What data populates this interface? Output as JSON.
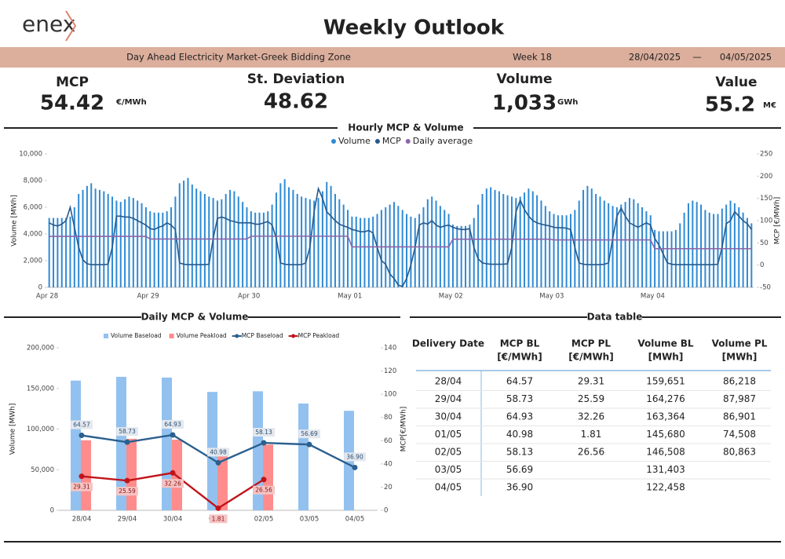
{
  "header": {
    "logo": "enex",
    "title": "Weekly Outlook",
    "market": "Day Ahead Electricity Market-Greek Bidding Zone",
    "week": "Week 18",
    "date_from": "28/04/2025",
    "separator": "—",
    "date_to": "04/05/2025"
  },
  "kpis": [
    {
      "label": "MCP",
      "value": "54.42",
      "unit": "€/MWh"
    },
    {
      "label": "St. Deviation",
      "value": "48.62"
    },
    {
      "label": "Volume",
      "value": "1,033",
      "unit": "GWh"
    },
    {
      "label": "Value",
      "value": "55.2",
      "unit": "M€"
    }
  ],
  "chart_data": [
    {
      "type": "bar_line",
      "title": "Hourly MCP & Volume",
      "ylabel": "Volume [MWh]",
      "y2label": "MCP [€/MWh]",
      "legend": "top",
      "categories": [
        "Apr 28",
        null,
        null,
        null,
        null,
        null,
        null,
        null,
        null,
        null,
        null,
        null,
        null,
        null,
        null,
        null,
        null,
        null,
        null,
        null,
        null,
        null,
        null,
        null,
        "Apr 29",
        null,
        null,
        null,
        null,
        null,
        null,
        null,
        null,
        null,
        null,
        null,
        null,
        null,
        null,
        null,
        null,
        null,
        null,
        null,
        null,
        null,
        null,
        null,
        "Apr 30",
        null,
        null,
        null,
        null,
        null,
        null,
        null,
        null,
        null,
        null,
        null,
        null,
        null,
        null,
        null,
        null,
        null,
        null,
        null,
        null,
        null,
        null,
        null,
        "May 01",
        null,
        null,
        null,
        null,
        null,
        null,
        null,
        null,
        null,
        null,
        null,
        null,
        null,
        null,
        null,
        null,
        null,
        null,
        null,
        null,
        null,
        null,
        null,
        "May 02",
        null,
        null,
        null,
        null,
        null,
        null,
        null,
        null,
        null,
        null,
        null,
        null,
        null,
        null,
        null,
        null,
        null,
        null,
        null,
        null,
        null,
        null,
        null,
        "May 03",
        null,
        null,
        null,
        null,
        null,
        null,
        null,
        null,
        null,
        null,
        null,
        null,
        null,
        null,
        null,
        null,
        null,
        null,
        null,
        null,
        null,
        null,
        null,
        "May 04",
        null,
        null,
        null,
        null,
        null,
        null,
        null,
        null,
        null,
        null,
        null,
        null,
        null,
        null,
        null,
        null,
        null,
        null,
        null,
        null,
        null,
        null,
        null
      ],
      "ylim": [
        0,
        10000
      ],
      "yticks": [
        0,
        {
          "value": 2000,
          "label": "2,000"
        },
        {
          "value": 4000,
          "label": "4,000"
        },
        {
          "value": 6000,
          "label": "6,000"
        },
        {
          "value": 8000,
          "label": "8,000"
        },
        {
          "value": 10000,
          "label": "10,000"
        }
      ],
      "y2lim": [
        -50,
        250
      ],
      "y2ticks": [
        -50,
        0,
        50,
        100,
        150,
        200,
        250
      ],
      "series": [
        {
          "name": "Volume",
          "type": "bar",
          "color": "#2f8ad4",
          "values": [
            5200,
            5200,
            5200,
            5200,
            5200,
            5300,
            6000,
            7000,
            7300,
            7600,
            7800,
            7400,
            7300,
            7200,
            7000,
            6800,
            6500,
            6400,
            6600,
            6800,
            6700,
            6500,
            6300,
            6000,
            5700,
            5600,
            5600,
            5600,
            5700,
            6000,
            6800,
            7800,
            8000,
            8200,
            7700,
            7400,
            7200,
            7000,
            6800,
            6700,
            6500,
            6600,
            7000,
            7300,
            7200,
            6800,
            6400,
            6000,
            5700,
            5600,
            5600,
            5600,
            5700,
            6200,
            7100,
            7800,
            8100,
            7500,
            7300,
            7000,
            6800,
            6700,
            6600,
            6500,
            6700,
            7200,
            7900,
            7600,
            7000,
            6600,
            6200,
            5800,
            5300,
            5300,
            5200,
            5200,
            5200,
            5300,
            5500,
            5800,
            6000,
            6200,
            6400,
            6100,
            5800,
            5500,
            5300,
            5200,
            5500,
            6000,
            6600,
            6800,
            6500,
            6100,
            5800,
            5500,
            4700,
            4600,
            4600,
            4600,
            4700,
            5200,
            6200,
            7000,
            7400,
            7500,
            7300,
            7200,
            7000,
            6900,
            6800,
            6700,
            6800,
            7100,
            7400,
            7200,
            6900,
            6500,
            6100,
            5700,
            5500,
            5400,
            5400,
            5400,
            5500,
            5800,
            6500,
            7300,
            7600,
            7400,
            7000,
            6800,
            6500,
            6300,
            6100,
            6000,
            6200,
            6400,
            6700,
            6600,
            6300,
            6000,
            5700,
            5400,
            4300,
            4200,
            4200,
            4200,
            4200,
            4300,
            4800,
            5600,
            6300,
            6500,
            6400,
            6200,
            5800,
            5600,
            5500,
            5500,
            5900,
            6200,
            6500,
            6300,
            6000,
            5600,
            5200,
            4800
          ]
        },
        {
          "name": "MCP",
          "type": "line",
          "axis": "y2",
          "color": "#255a8c",
          "values": [
            95,
            90,
            88,
            92,
            100,
            130,
            85,
            40,
            12,
            3,
            1,
            1,
            1,
            1,
            2,
            40,
            110,
            110,
            108,
            108,
            105,
            100,
            95,
            90,
            82,
            80,
            85,
            88,
            95,
            90,
            80,
            5,
            2,
            1,
            1,
            1,
            1,
            1,
            2,
            60,
            105,
            108,
            105,
            100,
            98,
            95,
            95,
            95,
            95,
            92,
            92,
            95,
            98,
            90,
            60,
            5,
            2,
            1,
            1,
            1,
            1,
            5,
            40,
            120,
            172,
            150,
            120,
            110,
            100,
            92,
            88,
            85,
            80,
            78,
            75,
            75,
            78,
            72,
            40,
            10,
            2,
            -20,
            -30,
            -45,
            -48,
            -30,
            0,
            40,
            90,
            95,
            92,
            100,
            90,
            85,
            88,
            90,
            85,
            82,
            80,
            80,
            82,
            40,
            14,
            5,
            3,
            2,
            2,
            2,
            2,
            3,
            40,
            120,
            146,
            125,
            110,
            100,
            95,
            92,
            90,
            88,
            85,
            84,
            84,
            83,
            80,
            40,
            5,
            2,
            1,
            1,
            1,
            1,
            2,
            5,
            60,
            110,
            128,
            110,
            95,
            90,
            85,
            90,
            95,
            90,
            60,
            45,
            25,
            5,
            2,
            1,
            1,
            1,
            1,
            1,
            1,
            1,
            1,
            1,
            1,
            2,
            40,
            93,
            100,
            120,
            110,
            100,
            93,
            80
          ]
        },
        {
          "name": "Daily average",
          "type": "line",
          "axis": "y2",
          "color": "#8e64a8",
          "values": [
            64.57,
            64.57,
            64.57,
            64.57,
            64.57,
            64.57,
            64.57,
            64.57,
            64.57,
            64.57,
            64.57,
            64.57,
            64.57,
            64.57,
            64.57,
            64.57,
            64.57,
            64.57,
            64.57,
            64.57,
            64.57,
            64.57,
            64.57,
            64.57,
            58.73,
            58.73,
            58.73,
            58.73,
            58.73,
            58.73,
            58.73,
            58.73,
            58.73,
            58.73,
            58.73,
            58.73,
            58.73,
            58.73,
            58.73,
            58.73,
            58.73,
            58.73,
            58.73,
            58.73,
            58.73,
            58.73,
            58.73,
            58.73,
            64.93,
            64.93,
            64.93,
            64.93,
            64.93,
            64.93,
            64.93,
            64.93,
            64.93,
            64.93,
            64.93,
            64.93,
            64.93,
            64.93,
            64.93,
            64.93,
            64.93,
            64.93,
            64.93,
            64.93,
            64.93,
            64.93,
            64.93,
            64.93,
            40.98,
            40.98,
            40.98,
            40.98,
            40.98,
            40.98,
            40.98,
            40.98,
            40.98,
            40.98,
            40.98,
            40.98,
            40.98,
            40.98,
            40.98,
            40.98,
            40.98,
            40.98,
            40.98,
            40.98,
            40.98,
            40.98,
            40.98,
            40.98,
            58.13,
            58.13,
            58.13,
            58.13,
            58.13,
            58.13,
            58.13,
            58.13,
            58.13,
            58.13,
            58.13,
            58.13,
            58.13,
            58.13,
            58.13,
            58.13,
            58.13,
            58.13,
            58.13,
            58.13,
            58.13,
            58.13,
            58.13,
            58.13,
            56.69,
            56.69,
            56.69,
            56.69,
            56.69,
            56.69,
            56.69,
            56.69,
            56.69,
            56.69,
            56.69,
            56.69,
            56.69,
            56.69,
            56.69,
            56.69,
            56.69,
            56.69,
            56.69,
            56.69,
            56.69,
            56.69,
            56.69,
            56.69,
            36.9,
            36.9,
            36.9,
            36.9,
            36.9,
            36.9,
            36.9,
            36.9,
            36.9,
            36.9,
            36.9,
            36.9,
            36.9,
            36.9,
            36.9,
            36.9,
            36.9,
            36.9,
            36.9,
            36.9,
            36.9,
            36.9,
            36.9,
            36.9
          ]
        }
      ]
    },
    {
      "type": "bar_line",
      "title": "Daily MCP & Volume",
      "ylabel": "Volume [MWh]",
      "y2label": "MCP[€/MWh]",
      "legend": "top",
      "categories": [
        "28/04",
        "29/04",
        "30/04",
        "01/05",
        "02/05",
        "03/05",
        "04/05"
      ],
      "ylim": [
        0,
        200000
      ],
      "yticks": [
        0,
        {
          "value": 50000,
          "label": "50,000"
        },
        {
          "value": 100000,
          "label": "100,000"
        },
        {
          "value": 150000,
          "label": "150,000"
        },
        {
          "value": 200000,
          "label": "200,000"
        }
      ],
      "y2lim": [
        0,
        140
      ],
      "y2ticks": [
        0,
        20,
        40,
        60,
        80,
        100,
        120,
        140
      ],
      "series": [
        {
          "name": "Volume Baseload",
          "type": "bar",
          "color": "#92c1ef",
          "values": [
            159651,
            164276,
            163364,
            145680,
            146508,
            131403,
            122458
          ]
        },
        {
          "name": "Volume Peakload",
          "type": "bar",
          "color": "#ff8c8c",
          "values": [
            86218,
            87987,
            86901,
            74508,
            80863,
            null,
            null
          ]
        },
        {
          "name": "MCP Baseload",
          "type": "line",
          "axis": "y2",
          "color": "#2b5f8e",
          "values": [
            64.57,
            58.73,
            64.93,
            40.98,
            58.13,
            56.69,
            36.9
          ],
          "value_labels": [
            "64.57",
            "58.73",
            "64.93",
            "40.98",
            "58.13",
            "56.69",
            "36.90"
          ]
        },
        {
          "name": "MCP Peakload",
          "type": "line",
          "axis": "y2",
          "color": "#c0141a",
          "values": [
            29.31,
            25.59,
            32.26,
            1.81,
            26.56,
            null,
            null
          ],
          "value_labels": [
            "29.31",
            "25.59",
            "32.26",
            "1.81",
            "26.56",
            null,
            null
          ]
        }
      ]
    }
  ],
  "table": {
    "title": "Data table",
    "columns": [
      [
        "Delivery Date"
      ],
      [
        "MCP BL",
        "[€/MWh]"
      ],
      [
        "MCP PL",
        "[€/MWh]"
      ],
      [
        "Volume BL",
        "[MWh]"
      ],
      [
        "Volume PL",
        "[MWh]"
      ]
    ],
    "rows": [
      [
        "28/04",
        "64.57",
        "29.31",
        "159,651",
        "86,218"
      ],
      [
        "29/04",
        "58.73",
        "25.59",
        "164,276",
        "87,987"
      ],
      [
        "30/04",
        "64.93",
        "32.26",
        "163,364",
        "86,901"
      ],
      [
        "01/05",
        "40.98",
        "1.81",
        "145,680",
        "74,508"
      ],
      [
        "02/05",
        "58.13",
        "26.56",
        "146,508",
        "80,863"
      ],
      [
        "03/05",
        "56.69",
        null,
        "131,403",
        null
      ],
      [
        "04/05",
        "36.90",
        null,
        "122,458",
        null
      ]
    ]
  }
}
